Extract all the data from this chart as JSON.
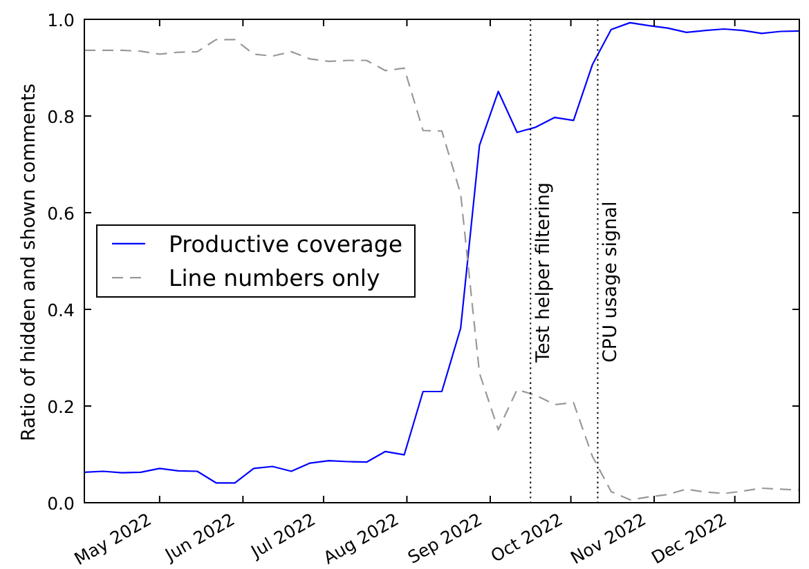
{
  "chart_data": {
    "type": "line",
    "ylabel": "Ratio of hidden and shown comments",
    "x": [
      "2022-04-03",
      "2022-04-10",
      "2022-04-17",
      "2022-04-24",
      "2022-05-01",
      "2022-05-08",
      "2022-05-15",
      "2022-05-22",
      "2022-05-29",
      "2022-06-05",
      "2022-06-12",
      "2022-06-19",
      "2022-06-26",
      "2022-07-03",
      "2022-07-10",
      "2022-07-17",
      "2022-07-24",
      "2022-07-31",
      "2022-08-07",
      "2022-08-14",
      "2022-08-21",
      "2022-08-28",
      "2022-09-04",
      "2022-09-11",
      "2022-09-18",
      "2022-09-25",
      "2022-10-02",
      "2022-10-09",
      "2022-10-16",
      "2022-10-23",
      "2022-10-30",
      "2022-11-06",
      "2022-11-13",
      "2022-11-20",
      "2022-11-27",
      "2022-12-04",
      "2022-12-11",
      "2022-12-18",
      "2022-12-25"
    ],
    "series": [
      {
        "name": "Productive coverage",
        "color": "#0000ff",
        "line_style": "solid",
        "values": [
          0.063,
          0.065,
          0.062,
          0.063,
          0.071,
          0.066,
          0.065,
          0.041,
          0.041,
          0.071,
          0.075,
          0.065,
          0.082,
          0.087,
          0.085,
          0.084,
          0.106,
          0.099,
          0.23,
          0.23,
          0.361,
          0.739,
          0.851,
          0.766,
          0.777,
          0.797,
          0.791,
          0.906,
          0.979,
          0.993,
          0.987,
          0.982,
          0.973,
          0.977,
          0.98,
          0.977,
          0.971,
          0.975,
          0.976
        ]
      },
      {
        "name": "Line numbers only",
        "color": "#999999",
        "line_style": "dashed",
        "values": [
          0.936,
          0.936,
          0.936,
          0.934,
          0.928,
          0.932,
          0.933,
          0.958,
          0.958,
          0.928,
          0.924,
          0.933,
          0.918,
          0.913,
          0.915,
          0.915,
          0.894,
          0.899,
          0.77,
          0.769,
          0.639,
          0.268,
          0.151,
          0.234,
          0.222,
          0.203,
          0.207,
          0.096,
          0.023,
          0.006,
          0.012,
          0.017,
          0.028,
          0.022,
          0.019,
          0.024,
          0.03,
          0.028,
          0.026
        ]
      }
    ],
    "xlim": [
      "2022-04-03",
      "2022-12-25"
    ],
    "xticks": [
      {
        "value": "2022-05-01",
        "label": "May 2022"
      },
      {
        "value": "2022-06-01",
        "label": "Jun 2022"
      },
      {
        "value": "2022-07-01",
        "label": "Jul 2022"
      },
      {
        "value": "2022-08-01",
        "label": "Aug 2022"
      },
      {
        "value": "2022-09-01",
        "label": "Sep 2022"
      },
      {
        "value": "2022-10-01",
        "label": "Oct 2022"
      },
      {
        "value": "2022-11-01",
        "label": "Nov 2022"
      },
      {
        "value": "2022-12-01",
        "label": "Dec 2022"
      }
    ],
    "ylim": [
      0,
      1
    ],
    "yticks": [
      {
        "value": 0,
        "label": "0.0"
      },
      0.2,
      0.4,
      0.6,
      0.8,
      {
        "value": 1,
        "label": "1.0"
      }
    ],
    "ref_lines": [
      {
        "axis": "x",
        "value": "2022-09-16",
        "label": "Test helper filtering",
        "color": "#000000",
        "line_style": "dotted"
      },
      {
        "axis": "x",
        "value": "2022-10-11",
        "label": "CPU usage signal",
        "color": "#000000",
        "line_style": "dotted"
      }
    ],
    "legend": "left"
  }
}
